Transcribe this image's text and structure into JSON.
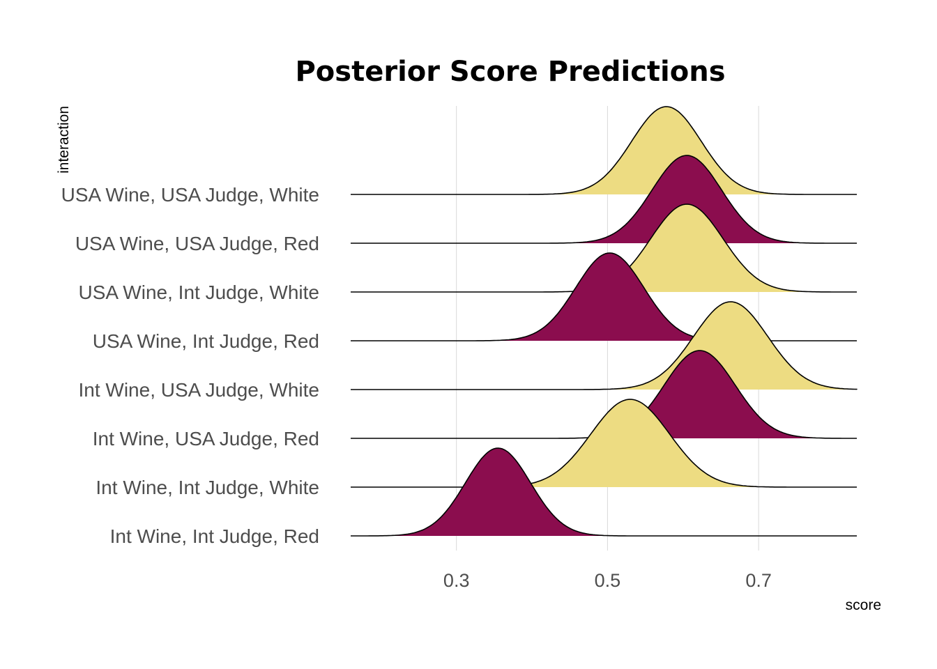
{
  "chart_data": {
    "type": "area",
    "subtype": "ridgeline",
    "title": "Posterior Score Predictions",
    "xlabel": "score",
    "ylabel": "interaction",
    "xlim": [
      0.16,
      0.83
    ],
    "x_ticks": [
      0.3,
      0.5,
      0.7
    ],
    "x_tick_labels": [
      "0.3",
      "0.5",
      "0.7"
    ],
    "grid": true,
    "legend": "none",
    "colors": {
      "Red": "#8B0D4E",
      "White": "#EDDC82"
    },
    "series": [
      {
        "category": "USA Wine, USA Judge, White",
        "fill": "White",
        "mean": 0.578,
        "sd": 0.046
      },
      {
        "category": "USA Wine, USA Judge, Red",
        "fill": "Red",
        "mean": 0.605,
        "sd": 0.046
      },
      {
        "category": "USA Wine, Int Judge, White",
        "fill": "White",
        "mean": 0.605,
        "sd": 0.048
      },
      {
        "category": "USA Wine, Int Judge, Red",
        "fill": "Red",
        "mean": 0.503,
        "sd": 0.045
      },
      {
        "category": "Int Wine, USA Judge, White",
        "fill": "White",
        "mean": 0.663,
        "sd": 0.049
      },
      {
        "category": "Int Wine, USA Judge, Red",
        "fill": "Red",
        "mean": 0.622,
        "sd": 0.047
      },
      {
        "category": "Int Wine, Int Judge, White",
        "fill": "White",
        "mean": 0.53,
        "sd": 0.052
      },
      {
        "category": "Int Wine, Int Judge, Red",
        "fill": "Red",
        "mean": 0.355,
        "sd": 0.043
      }
    ]
  }
}
